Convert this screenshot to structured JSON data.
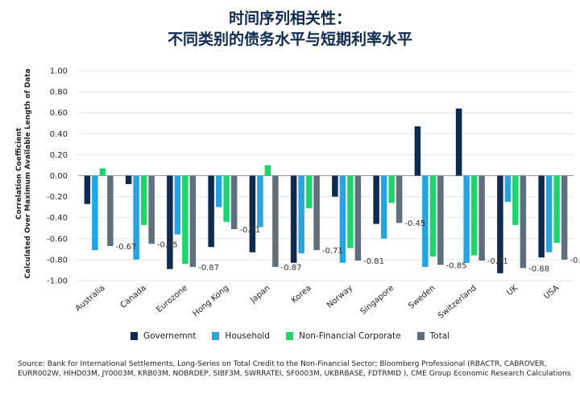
{
  "title_line1": "时间序列相关性：",
  "title_line2": "不同类别的债务水平与短期利率水平",
  "source_note": "Source: Bank for International Settlements, Long-Series on Total Credit to the Non-Financial Sector; Bloomberg Professional (RBACTR, CABROVER, EURR002W, HIHD03M, JY0003M, KRB03M, NOBRDEP, SIBF3M, SWRRATEI, SF0003M, UKBRBASE, FDTRMID ), CME Group Economic Research Calculations",
  "chart_data": {
    "type": "bar",
    "ylabel_line1": "Correlation Coefficient",
    "ylabel_line2": "Calculated Over Maximum Available Length of Data",
    "ylim": [
      -1.0,
      1.0
    ],
    "yticks": [
      1.0,
      0.8,
      0.6,
      0.4,
      0.2,
      0.0,
      -0.2,
      -0.4,
      -0.6,
      -0.8,
      -1.0
    ],
    "ytick_labels": [
      "1.00",
      "0.80",
      "0.60",
      "0.40",
      "0.20",
      "0.00",
      "-0.20",
      "-0.40",
      "-0.60",
      "-0.80",
      "-1.00"
    ],
    "grid": true,
    "legend_position": "bottom",
    "categories": [
      "Australia",
      "Canada",
      "Eurozone",
      "Hong Kong",
      "Japan",
      "Korea",
      "Norway",
      "Singapore",
      "Sweden",
      "Switzerland",
      "UK",
      "USA"
    ],
    "series": [
      {
        "name": "Governemnt",
        "color": "#0f2a4f",
        "values": [
          -0.27,
          -0.08,
          -0.89,
          -0.68,
          -0.73,
          -0.83,
          -0.2,
          -0.46,
          0.47,
          0.64,
          -0.93,
          -0.78
        ]
      },
      {
        "name": "Household",
        "color": "#29a3dd",
        "values": [
          -0.71,
          -0.8,
          -0.56,
          -0.3,
          -0.49,
          -0.74,
          -0.83,
          -0.6,
          -0.87,
          -0.83,
          -0.25,
          -0.73
        ]
      },
      {
        "name": "Non-Financial Corporate",
        "color": "#1ed46f",
        "values": [
          0.07,
          -0.47,
          -0.84,
          -0.44,
          0.1,
          -0.31,
          -0.69,
          -0.26,
          -0.77,
          -0.76,
          -0.47,
          -0.64
        ]
      },
      {
        "name": "Total",
        "color": "#5f6f7e",
        "values": [
          -0.67,
          -0.65,
          -0.87,
          -0.51,
          -0.87,
          -0.71,
          -0.81,
          -0.45,
          -0.85,
          -0.81,
          -0.88,
          -0.8
        ]
      }
    ],
    "data_labels": [
      "-0.67",
      "-0.65",
      "-0.87",
      "-0.51",
      "-0.87",
      "-0.71",
      "-0.81",
      "-0.45",
      "-0.85",
      "-0.81",
      "-0.88",
      "-0.80"
    ]
  }
}
